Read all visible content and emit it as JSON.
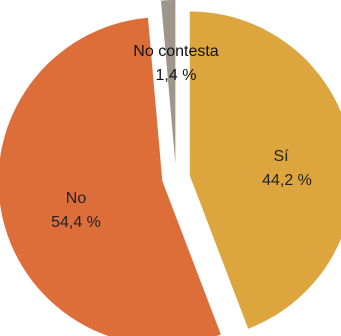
{
  "chart_data": {
    "type": "pie",
    "slices": [
      {
        "label": "Sí",
        "value": 44.2,
        "display": "44,2 %",
        "color": "#DCA53D"
      },
      {
        "label": "No",
        "value": 54.4,
        "display": "54,4 %",
        "color": "#DD6E3A"
      },
      {
        "label": "No contesta",
        "value": 1.4,
        "display": "1,4 %",
        "color": "#9E958B"
      }
    ],
    "exploded": true,
    "start": "top",
    "direction": "clockwise",
    "legend": "none"
  }
}
